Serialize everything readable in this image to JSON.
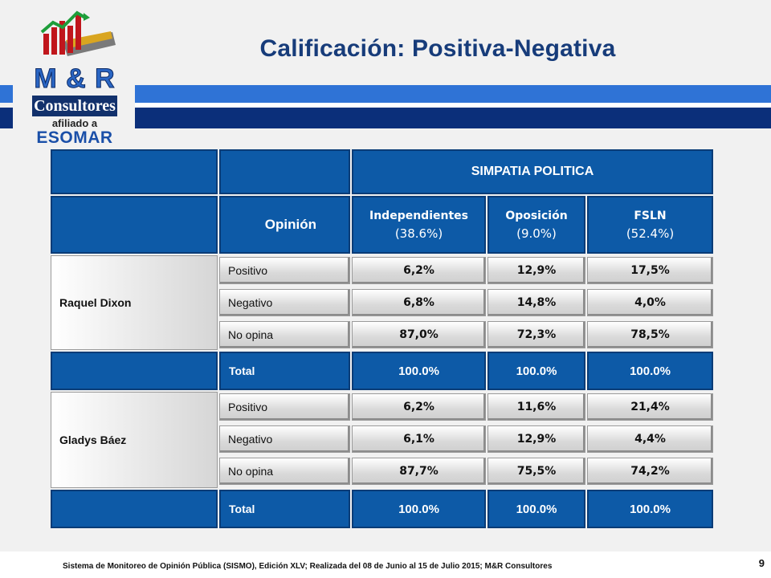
{
  "title": "Calificación: Positiva-Negativa",
  "logo": {
    "brand": "M & R",
    "name": "Consultores",
    "affiliation": "afiliado a",
    "association": "ESOMAR"
  },
  "table": {
    "group_header": "SIMPATIA POLITICA",
    "opinion_header": "Opinión",
    "columns": [
      {
        "name": "Independientes",
        "share": "(38.6%)"
      },
      {
        "name": "Oposición",
        "share": "(9.0%)"
      },
      {
        "name": "FSLN",
        "share": "(52.4%)"
      }
    ],
    "sections": [
      {
        "candidate": "Raquel Dixon",
        "rows": [
          {
            "label": "Positivo",
            "values": [
              "6,2%",
              "12,9%",
              "17,5%"
            ]
          },
          {
            "label": "Negativo",
            "values": [
              "6,8%",
              "14,8%",
              "4,0%"
            ]
          },
          {
            "label": "No opina",
            "values": [
              "87,0%",
              "72,3%",
              "78,5%"
            ]
          }
        ],
        "total_label": "Total",
        "totals": [
          "100.0%",
          "100.0%",
          "100.0%"
        ]
      },
      {
        "candidate": "Gladys Báez",
        "rows": [
          {
            "label": "Positivo",
            "values": [
              "6,2%",
              "11,6%",
              "21,4%"
            ]
          },
          {
            "label": "Negativo",
            "values": [
              "6,1%",
              "12,9%",
              "4,4%"
            ]
          },
          {
            "label": "No opina",
            "values": [
              "87,7%",
              "75,5%",
              "74,2%"
            ]
          }
        ],
        "total_label": "Total",
        "totals": [
          "100.0%",
          "100.0%",
          "100.0%"
        ]
      }
    ]
  },
  "footer": {
    "text": "Sistema de Monitoreo de Opinión Pública (SISMO), Edición XLV; Realizada del 08 de Junio al 15 de Julio 2015; M&R Consultores",
    "page_number": "9"
  },
  "colors": {
    "header_blue": "#0d5aa7",
    "title_navy": "#173c7a",
    "band_light": "#2f73d6",
    "band_dark": "#0b2f7a"
  }
}
